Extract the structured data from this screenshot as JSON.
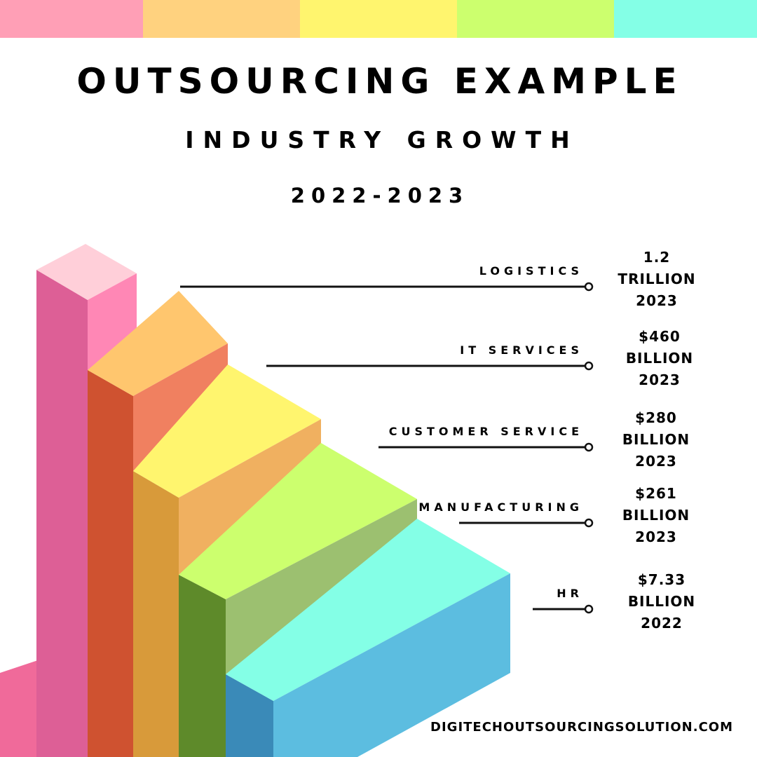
{
  "header": {
    "title": "OUTSOURCING EXAMPLE",
    "subtitle": "INDUSTRY GROWTH",
    "period": "2022-2023"
  },
  "items": [
    {
      "label": "LOGISTICS",
      "value": [
        "1.2",
        "TRILLION",
        "2023"
      ]
    },
    {
      "label": "IT SERVICES",
      "value": [
        "$460",
        "BILLION",
        "2023"
      ]
    },
    {
      "label": "CUSTOMER SERVICE",
      "value": [
        "$280",
        "BILLION",
        "2023"
      ]
    },
    {
      "label": "MANUFACTURING",
      "value": [
        "$261",
        "BILLION",
        "2023"
      ]
    },
    {
      "label": "HR",
      "value": [
        "$7.33",
        "BILLION",
        "2022"
      ]
    }
  ],
  "footer": "DIGITECHOUTSOURCINGSOLUTION.COM"
}
